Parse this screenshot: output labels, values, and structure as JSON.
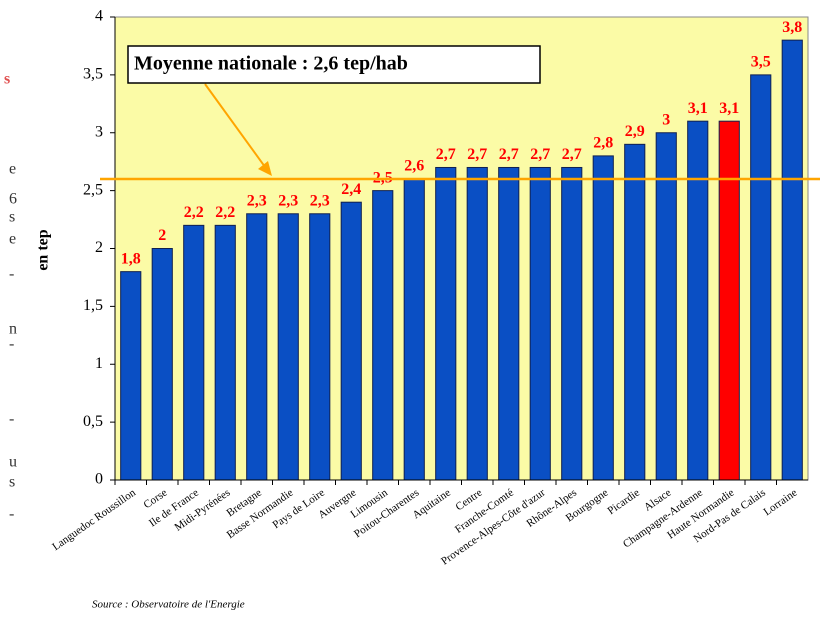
{
  "chart_data": {
    "type": "bar",
    "y_label": "en tep",
    "source": "Source : Observatoire de l'Energie",
    "reference": {
      "value": 2.6,
      "label": "Moyenne nationale : 2,6 tep/hab",
      "color": "#ffa500"
    },
    "categories": [
      "Languedoc Roussillon",
      "Corse",
      "Ile de France",
      "Midi-Pyrénées",
      "Bretagne",
      "Basse Normandie",
      "Pays de Loire",
      "Auvergne",
      "Limousin",
      "Poitou-Charentes",
      "Aquitaine",
      "Centre",
      "Franche-Comté",
      "Provence-Alpes-Côte d'azur",
      "Rhône-Alpes",
      "Bourgogne",
      "Picardie",
      "Alsace",
      "Champagne-Ardenne",
      "Haute Normandie",
      "Nord-Pas de Calais",
      "Lorraine"
    ],
    "values": [
      1.8,
      2,
      2.2,
      2.2,
      2.3,
      2.3,
      2.3,
      2.4,
      2.5,
      2.6,
      2.7,
      2.7,
      2.7,
      2.7,
      2.7,
      2.8,
      2.9,
      3,
      3.1,
      3.1,
      3.5,
      3.8
    ],
    "value_labels": [
      "1,8",
      "2",
      "2,2",
      "2,2",
      "2,3",
      "2,3",
      "2,3",
      "2,4",
      "2,5",
      "2,6",
      "2,7",
      "2,7",
      "2,7",
      "2,7",
      "2,7",
      "2,8",
      "2,9",
      "3",
      "3,1",
      "3,1",
      "3,5",
      "3,8"
    ],
    "colors": [
      "#0a4fc4",
      "#0a4fc4",
      "#0a4fc4",
      "#0a4fc4",
      "#0a4fc4",
      "#0a4fc4",
      "#0a4fc4",
      "#0a4fc4",
      "#0a4fc4",
      "#0a4fc4",
      "#0a4fc4",
      "#0a4fc4",
      "#0a4fc4",
      "#0a4fc4",
      "#0a4fc4",
      "#0a4fc4",
      "#0a4fc4",
      "#0a4fc4",
      "#0a4fc4",
      "#ff0000",
      "#0a4fc4",
      "#0a4fc4"
    ],
    "ylim": [
      0,
      4
    ],
    "yticks": [
      0,
      {
        "value": 0.5,
        "label": "0,5"
      },
      1,
      {
        "value": 1.5,
        "label": "1,5"
      },
      2,
      {
        "value": 2.5,
        "label": "2,5"
      },
      3,
      {
        "value": 3.5,
        "label": "3,5"
      },
      4
    ],
    "margin_text": [
      "s",
      "e",
      "6",
      "s",
      "e",
      "-",
      "n",
      "-",
      "-",
      "u",
      "s",
      "-"
    ]
  }
}
